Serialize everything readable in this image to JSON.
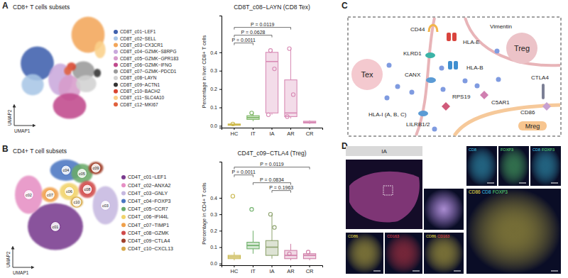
{
  "panel_labels": [
    "A",
    "B",
    "C",
    "D"
  ],
  "chart_data": [
    {
      "type": "scatter",
      "title": "CD8+ T cells subsets",
      "x_label": "UMAP1",
      "y_label": "UMAP2",
      "xlim": [
        0,
        10
      ],
      "ylim": [
        0,
        10
      ],
      "tick_labels": false,
      "legend": "right",
      "series": [
        {
          "name": "CD8T_c01−LEF1",
          "color": "#3f60ad",
          "x": 2.5,
          "y": 5.5,
          "rx": 1.8,
          "ry": 1.6
        },
        {
          "name": "CD8T_c02−SELL",
          "color": "#a9c6e6",
          "x": 2.0,
          "y": 3.5,
          "rx": 1.2,
          "ry": 1.0
        },
        {
          "name": "CD8T_c03−CX3CR1",
          "color": "#f2a65a",
          "x": 8.0,
          "y": 8.2,
          "rx": 1.8,
          "ry": 1.7
        },
        {
          "name": "CD8T_c04−GZMK−S8RPG",
          "color": "#c9a8dc",
          "x": 5.0,
          "y": 4.0,
          "rx": 1.3,
          "ry": 1.5
        },
        {
          "name": "CD8T_c05−GZMK−GPR183",
          "color": "#d79ccb",
          "x": 6.0,
          "y": 3.2,
          "rx": 1.2,
          "ry": 1.2
        },
        {
          "name": "CD8T_c06−GZMK−IFNG",
          "color": "#c0498c",
          "x": 6.0,
          "y": 1.5,
          "rx": 1.8,
          "ry": 1.2
        },
        {
          "name": "CD8T_c07−GZMK−PDCD1",
          "color": "#9a9a9a",
          "x": 7.5,
          "y": 4.8,
          "rx": 1.2,
          "ry": 0.9
        },
        {
          "name": "CD8T_c08−LAYN",
          "color": "#d2d2d2",
          "x": 7.8,
          "y": 3.6,
          "rx": 1.1,
          "ry": 0.8
        },
        {
          "name": "CD8T_c09−ACTN1",
          "color": "#333333",
          "x": 9.0,
          "y": 4.6,
          "rx": 0.4,
          "ry": 0.4
        },
        {
          "name": "CD8T_c10−BACH2",
          "color": "#d8432f",
          "x": 6.2,
          "y": 5.2,
          "rx": 0.5,
          "ry": 0.4
        },
        {
          "name": "CD8T_c11−SLC4A10",
          "color": "#fbd08a",
          "x": 9.3,
          "y": 6.8,
          "rx": 0.6,
          "ry": 0.8
        },
        {
          "name": "CD8T_c12−MKI67",
          "color": "#e0603c",
          "x": 5.8,
          "y": 4.8,
          "rx": 0.4,
          "ry": 0.4
        }
      ]
    },
    {
      "type": "box",
      "title": "CD8T_c08−LAYN (CD8 Tex)",
      "y_label": "Percentage in liver CD8+ T cells",
      "categories": [
        "HC",
        "IT",
        "IA",
        "AR",
        "CR"
      ],
      "ylim": [
        -0.01,
        0.6
      ],
      "yticks": [
        {
          "value": 0,
          "label": "0.0"
        },
        0.1,
        0.2,
        0.3,
        0.4
      ],
      "colors": [
        "#cdb84a",
        "#7ab561",
        "#d88bb5",
        "#d88bb5",
        "#d88bb5"
      ],
      "boxes": [
        {
          "whisker_low": 0,
          "q1": 0.003,
          "median": 0.006,
          "q3": 0.01,
          "whisker_high": 0.015,
          "points": [
            0.01
          ]
        },
        {
          "whisker_low": 0.025,
          "q1": 0.035,
          "median": 0.045,
          "q3": 0.055,
          "whisker_high": 0.07,
          "points": [
            0.07
          ]
        },
        {
          "whisker_low": 0.06,
          "q1": 0.07,
          "median": 0.35,
          "q3": 0.4,
          "whisker_high": 0.41,
          "points": [
            0.41,
            0.31,
            0.06
          ]
        },
        {
          "whisker_low": 0.04,
          "q1": 0.05,
          "median": 0.07,
          "q3": 0.25,
          "whisker_high": 0.42,
          "points": [
            0.42,
            0.17,
            0.05
          ]
        },
        {
          "whisker_low": 0.01,
          "q1": 0.015,
          "median": 0.02,
          "q3": 0.025,
          "whisker_high": 0.03,
          "points": []
        }
      ],
      "annotations": [
        {
          "from": "HC",
          "to": "IT",
          "text": "P = 0.0011"
        },
        {
          "from": "HC",
          "to": "IA",
          "text": "P = 0.0628"
        },
        {
          "from": "HC",
          "to": "AR",
          "text": "P = 0.0119"
        }
      ]
    },
    {
      "type": "scatter",
      "title": "CD4+ T cell subsets",
      "x_label": "UMAP1",
      "y_label": "UMAP2",
      "xlim": [
        0,
        10
      ],
      "ylim": [
        0,
        10
      ],
      "tick_labels": false,
      "legend": "right",
      "series": [
        {
          "name": "CD4T_c01−LEF1",
          "color": "#7a3b8e",
          "x": 4.0,
          "y": 3.5,
          "rx": 2.6,
          "ry": 2.2,
          "tag": "c01"
        },
        {
          "name": "CD4T_c02−ANXA2",
          "color": "#e68fc4",
          "x": 1.5,
          "y": 6.5,
          "rx": 1.3,
          "ry": 1.8,
          "tag": "c02"
        },
        {
          "name": "CD4T_c03−GNLY",
          "color": "#c6b8e0",
          "x": 8.7,
          "y": 5.5,
          "rx": 1.2,
          "ry": 1.8,
          "tag": "c03"
        },
        {
          "name": "CD4T_c04−FOXP3",
          "color": "#4b76c1",
          "x": 5.0,
          "y": 8.8,
          "rx": 1.5,
          "ry": 1.0,
          "tag": "c04"
        },
        {
          "name": "CD4T_c05−CCR7",
          "color": "#6aaa6a",
          "x": 6.5,
          "y": 8.5,
          "rx": 1.0,
          "ry": 0.9,
          "tag": "c05"
        },
        {
          "name": "CD4T_c06−IFI44L",
          "color": "#f1d36a",
          "x": 5.3,
          "y": 6.8,
          "rx": 0.9,
          "ry": 0.8,
          "tag": "c06"
        },
        {
          "name": "CD4T_c07−TIMP1",
          "color": "#f0a04b",
          "x": 3.5,
          "y": 6.5,
          "rx": 0.8,
          "ry": 0.7,
          "tag": "c07"
        },
        {
          "name": "CD4T_c08−GZMK",
          "color": "#d04a4a",
          "x": 7.0,
          "y": 7.0,
          "rx": 0.8,
          "ry": 0.8,
          "tag": "c08"
        },
        {
          "name": "CD4T_c09−CTLA4",
          "color": "#a0402b",
          "x": 7.8,
          "y": 9.0,
          "rx": 0.7,
          "ry": 0.6,
          "tag": "c09"
        },
        {
          "name": "CD4T_c10−CXCL13",
          "color": "#d6a94a",
          "x": 6.0,
          "y": 5.8,
          "rx": 0.6,
          "ry": 0.5,
          "tag": "c10"
        }
      ]
    },
    {
      "type": "box",
      "title": "CD4T_c09−CTLA4 (Treg)",
      "y_label": "Percentage in CD4+ T cells",
      "categories": [
        "HC",
        "IT",
        "IA",
        "AR",
        "CR"
      ],
      "ylim": [
        -0.01,
        0.62
      ],
      "yticks": [
        {
          "value": 0,
          "label": "0.0"
        },
        0.1,
        0.2,
        0.3,
        0.4
      ],
      "colors": [
        "#c9b74d",
        "#6fb06a",
        "#8ea36f",
        "#d07fa8",
        "#d07fa8"
      ],
      "boxes": [
        {
          "whisker_low": 0.02,
          "q1": 0.03,
          "median": 0.04,
          "q3": 0.05,
          "whisker_high": 0.07,
          "points": [
            0.41
          ]
        },
        {
          "whisker_low": 0.06,
          "q1": 0.09,
          "median": 0.11,
          "q3": 0.13,
          "whisker_high": 0.2,
          "points": [
            0.33
          ]
        },
        {
          "whisker_low": 0.03,
          "q1": 0.05,
          "median": 0.1,
          "q3": 0.14,
          "whisker_high": 0.3,
          "points": [
            0.3,
            0.22
          ]
        },
        {
          "whisker_low": 0.02,
          "q1": 0.03,
          "median": 0.05,
          "q3": 0.08,
          "whisker_high": 0.12,
          "points": [
            0.06
          ]
        },
        {
          "whisker_low": 0.02,
          "q1": 0.03,
          "median": 0.05,
          "q3": 0.06,
          "whisker_high": 0.07,
          "points": [
            0.07
          ]
        }
      ],
      "annotations": [
        {
          "from": "IA",
          "to": "AR",
          "text": "P = 0.1963"
        },
        {
          "from": "IT",
          "to": "AR",
          "text": "P = 0.0834"
        },
        {
          "from": "HC",
          "to": "IT",
          "text": "P = 0.0011"
        },
        {
          "from": "HC",
          "to": "CR",
          "text": "P = 0.0119"
        }
      ]
    }
  ],
  "diagram": {
    "cells": [
      "Tex",
      "Treg",
      "Mreg"
    ],
    "molecules": [
      "CD44",
      "Vimentin",
      "KLRD1",
      "HLA-E",
      "HLA-B",
      "CANX",
      "CTLA4",
      "RPS19",
      "C5AR1",
      "HLA-I (A, B, C)",
      "LILRB1/2",
      "CD86"
    ]
  },
  "micrograph": {
    "header": "IA",
    "tiles": [
      {
        "labels": [
          {
            "text": "CD8",
            "color": "#3ec6e8"
          }
        ]
      },
      {
        "labels": [
          {
            "text": "FOXP3",
            "color": "#5fe07a"
          }
        ]
      },
      {
        "labels": [
          {
            "text": "CD8",
            "color": "#3ec6e8"
          },
          {
            "text": "FOXP3",
            "color": "#5fe07a"
          }
        ]
      },
      {
        "labels": [
          {
            "text": "CD86",
            "color": "#f5e04a"
          }
        ]
      },
      {
        "labels": [
          {
            "text": "CD163",
            "color": "#f2434f"
          }
        ]
      },
      {
        "labels": [
          {
            "text": "CD86",
            "color": "#f5e04a"
          },
          {
            "text": "CD163",
            "color": "#f2434f"
          }
        ]
      },
      {
        "labels": [
          {
            "text": "CD86",
            "color": "#f5e04a"
          },
          {
            "text": "CD8",
            "color": "#3ec6e8"
          },
          {
            "text": "FOXP3",
            "color": "#5fe07a"
          }
        ]
      }
    ]
  }
}
